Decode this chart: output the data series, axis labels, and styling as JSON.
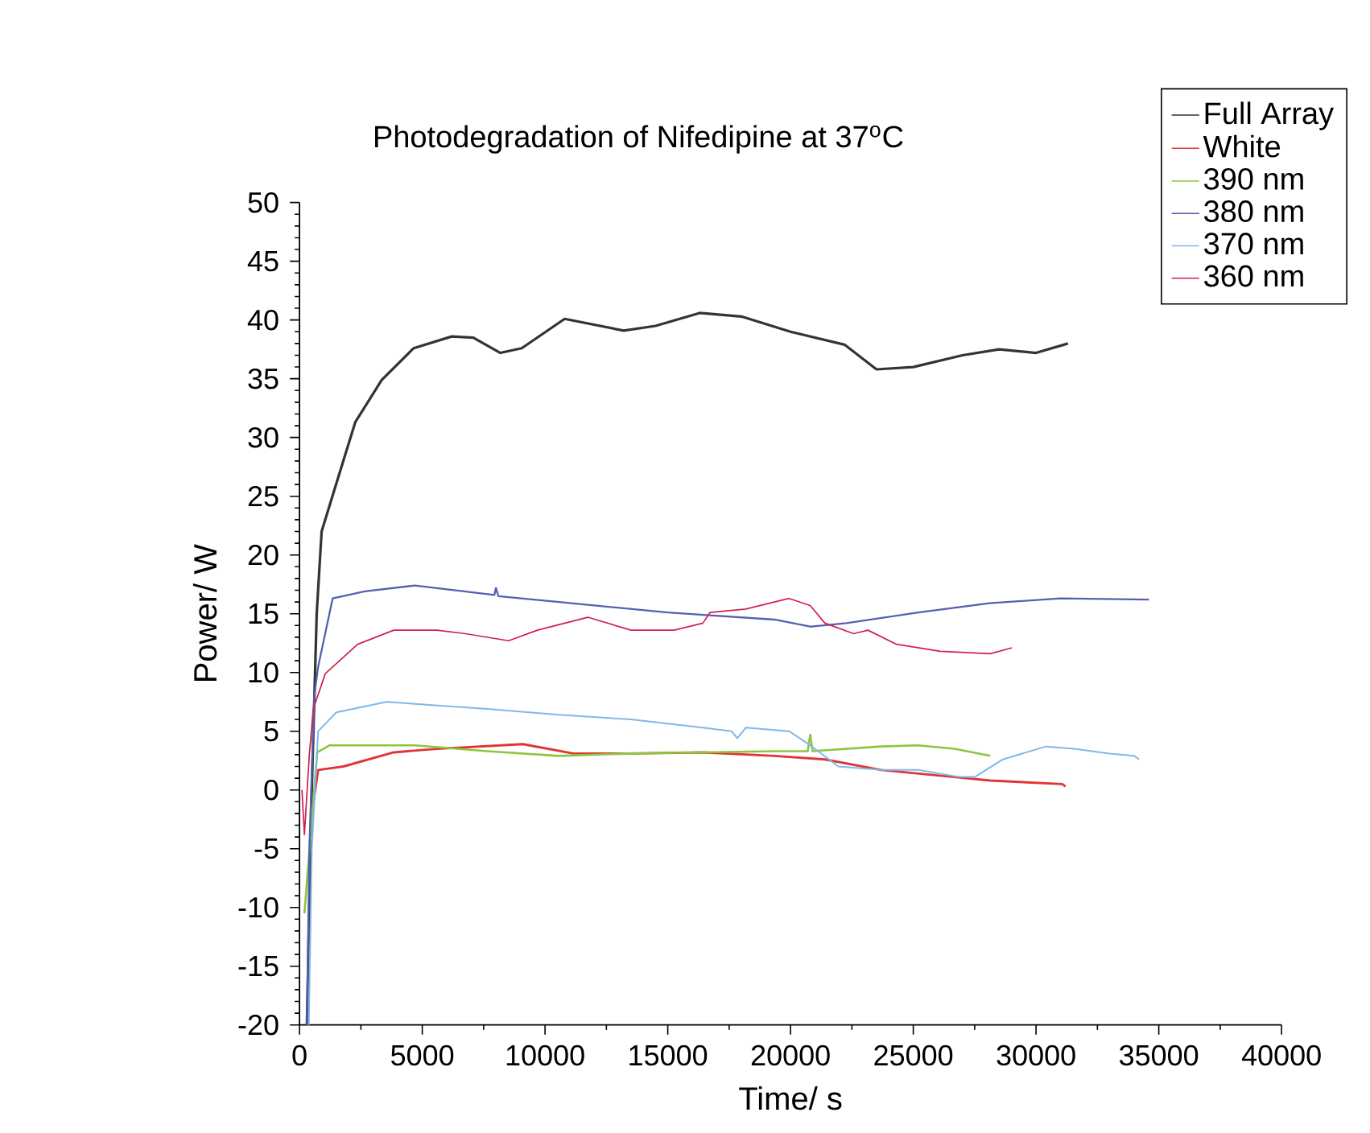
{
  "chart_data": {
    "type": "line",
    "title": "Photodegradation of Nifedipine at 37$^{o}$C",
    "xlabel": "Time/ s",
    "ylabel": "Power/ W",
    "xlim": [
      0,
      40000
    ],
    "xticks": [
      0,
      5000,
      10000,
      15000,
      20000,
      25000,
      30000,
      35000,
      40000
    ],
    "ylim": [
      -20,
      50
    ],
    "yticks": [
      -20,
      -15,
      -10,
      -5,
      0,
      5,
      10,
      15,
      20,
      25,
      30,
      35,
      40,
      45,
      50
    ],
    "legend": "top right",
    "line_style": "solid",
    "series": [
      {
        "name": "Full Array",
        "color": "#333333",
        "x": [
          300,
          500,
          700,
          900,
          1400,
          2270,
          3350,
          4650,
          6200,
          7080,
          8180,
          9050,
          10800,
          13200,
          14500,
          16300,
          18000,
          20000,
          22200,
          23500,
          25000,
          27000,
          28500,
          30000,
          31300
        ],
        "values": [
          -20,
          0,
          15,
          22,
          25.4,
          31.3,
          34.9,
          37.6,
          38.6,
          38.5,
          37.2,
          37.6,
          40.1,
          39.1,
          39.5,
          40.6,
          40.3,
          39.0,
          37.9,
          35.8,
          36,
          37,
          37.5,
          37.2,
          38
        ]
      },
      {
        "name": "White",
        "color": "#e03535",
        "x": [
          500,
          760,
          1790,
          3840,
          5590,
          9100,
          11150,
          13500,
          16430,
          19350,
          21400,
          23700,
          26670,
          28140,
          31070,
          31200
        ],
        "values": [
          -2,
          1.7,
          2.0,
          3.2,
          3.5,
          3.9,
          3.1,
          3.1,
          3.2,
          2.9,
          2.6,
          1.7,
          1.1,
          0.8,
          0.5,
          0.3
        ]
      },
      {
        "name": "390 nm",
        "color": "#8cc63f",
        "x": [
          200,
          720,
          1230,
          4700,
          7640,
          10570,
          13500,
          16430,
          19350,
          20700,
          20800,
          20900,
          23700,
          25200,
          26670,
          28140
        ],
        "values": [
          -10.5,
          3.2,
          3.8,
          3.8,
          3.3,
          2.9,
          3.1,
          3.2,
          3.3,
          3.3,
          4.7,
          3.3,
          3.7,
          3.8,
          3.5,
          2.9
        ]
      },
      {
        "name": "380 nm",
        "color": "#5560b0",
        "x": [
          300,
          400,
          600,
          760,
          1350,
          2660,
          4700,
          7940,
          8000,
          8100,
          10570,
          15000,
          19350,
          20800,
          22280,
          25200,
          28100,
          31000,
          34600
        ],
        "values": [
          -20,
          -5,
          8,
          10.5,
          16.3,
          16.9,
          17.4,
          16.6,
          17.2,
          16.5,
          16.0,
          15.1,
          14.5,
          13.9,
          14.2,
          15.1,
          15.9,
          16.3,
          16.2
        ]
      },
      {
        "name": "370 nm",
        "color": "#80b8e8",
        "x": [
          380,
          500,
          760,
          1500,
          3540,
          7640,
          10570,
          13500,
          16430,
          17600,
          17830,
          18180,
          19940,
          20800,
          21950,
          23700,
          25200,
          26900,
          27500,
          28650,
          30400,
          31550,
          33000,
          34000,
          34200
        ],
        "values": [
          -20,
          -5,
          5.0,
          6.6,
          7.5,
          6.9,
          6.4,
          6.0,
          5.3,
          5.0,
          4.4,
          5.3,
          5.0,
          3.8,
          2.0,
          1.7,
          1.7,
          1.1,
          1.1,
          2.6,
          3.7,
          3.5,
          3.1,
          2.9,
          2.6
        ]
      },
      {
        "name": "360 nm",
        "color": "#d02050",
        "x": [
          100,
          200,
          400,
          560,
          1050,
          2370,
          3840,
          5590,
          6760,
          8520,
          9690,
          11740,
          13500,
          15260,
          16430,
          16720,
          18180,
          19940,
          20800,
          21400,
          22570,
          23150,
          24320,
          26100,
          28140,
          29020
        ],
        "values": [
          0,
          -3.8,
          3,
          6.9,
          9.9,
          12.4,
          13.6,
          13.6,
          13.3,
          12.7,
          13.6,
          14.7,
          13.6,
          13.6,
          14.2,
          15.1,
          15.4,
          16.3,
          15.7,
          14.2,
          13.3,
          13.6,
          12.4,
          11.8,
          11.6,
          12.1
        ]
      }
    ]
  }
}
